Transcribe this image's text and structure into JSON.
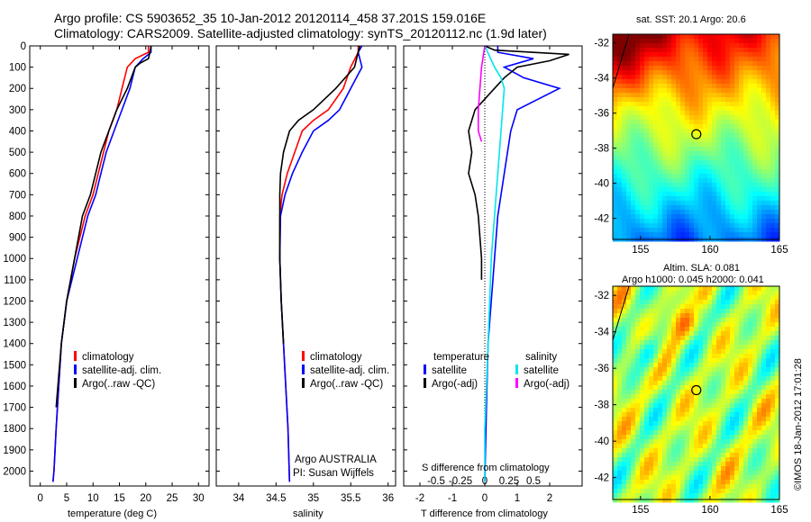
{
  "header": {
    "line1": "Argo profile: CS 5903652_35 10-Jan-2012 20120114_458 37.201S 159.016E",
    "line2": "Climatology: CARS2009. Satellite-adjusted climatology: synTS_20120112.nc (1.9d later)"
  },
  "colors": {
    "climatology": "#ff0000",
    "satellite": "#0000ff",
    "argo": "#000000",
    "sat_salinity": "#00e5ee",
    "argo_adj_salinity": "#ff00ff"
  },
  "chart_data": [
    {
      "type": "line",
      "xlabel": "temperature (deg C)",
      "ylabel": "",
      "xlim": [
        -2,
        32
      ],
      "ylim": [
        2070,
        0
      ],
      "xticks": [
        "0",
        "5",
        "10",
        "15",
        "20",
        "25",
        "30"
      ],
      "yticks": [
        "0",
        "100",
        "200",
        "300",
        "400",
        "500",
        "600",
        "700",
        "800",
        "900",
        "1000",
        "1100",
        "1200",
        "1300",
        "1400",
        "1500",
        "1600",
        "1700",
        "1800",
        "1900",
        "2000"
      ],
      "legend": [
        "climatology",
        "satellite-adj. clim.",
        "Argo(..raw -QC)"
      ],
      "series": [
        {
          "name": "climatology",
          "color": "#ff0000",
          "x": [
            20.5,
            20.5,
            18.0,
            16.5,
            15.5,
            14.5,
            13.0,
            12.0,
            11.0,
            10.0,
            8.5,
            6.5,
            5.0,
            4.0,
            3.5,
            3.0,
            2.6,
            2.4
          ],
          "y": [
            0,
            30,
            60,
            100,
            200,
            300,
            400,
            500,
            600,
            700,
            800,
            1000,
            1200,
            1400,
            1600,
            1800,
            2000,
            2050
          ]
        },
        {
          "name": "satellite-adj. clim.",
          "color": "#0000ff",
          "x": [
            21.0,
            21.0,
            19.5,
            18.0,
            17.0,
            15.5,
            14.0,
            12.5,
            11.5,
            10.5,
            9.0,
            7.0,
            5.0,
            4.0,
            3.5,
            3.0,
            2.6,
            2.4
          ],
          "y": [
            0,
            30,
            60,
            100,
            200,
            300,
            400,
            500,
            600,
            700,
            800,
            1000,
            1200,
            1400,
            1600,
            1800,
            2000,
            2050
          ]
        },
        {
          "name": "Argo(..raw -QC)",
          "color": "#000000",
          "x": [
            21.0,
            20.8,
            20.5,
            19.0,
            18.0,
            16.5,
            14.5,
            13.0,
            11.5,
            10.5,
            9.5,
            8.0,
            6.5,
            5.0,
            4.0,
            3.0
          ],
          "y": [
            0,
            30,
            60,
            80,
            100,
            200,
            300,
            400,
            500,
            600,
            700,
            800,
            1000,
            1200,
            1400,
            1700
          ]
        }
      ]
    },
    {
      "type": "line",
      "xlabel": "salinity",
      "ylabel": "",
      "xlim": [
        33.7,
        36.1
      ],
      "ylim": [
        2070,
        0
      ],
      "xticks": [
        "34",
        "34.5",
        "35",
        "35.5",
        "36"
      ],
      "legend": [
        "climatology",
        "satellite-adj. clim.",
        "Argo(..raw -QC)"
      ],
      "annotation": [
        "Argo AUSTRALIA",
        "PI: Susan Wijffels"
      ],
      "series": [
        {
          "name": "climatology",
          "color": "#ff0000",
          "x": [
            35.6,
            35.6,
            35.5,
            35.4,
            35.2,
            35.0,
            34.85,
            34.75,
            34.65,
            34.58,
            34.55,
            34.55,
            34.57,
            34.6,
            34.63,
            34.66,
            34.68
          ],
          "y": [
            0,
            30,
            100,
            200,
            300,
            350,
            400,
            500,
            600,
            700,
            800,
            1000,
            1200,
            1400,
            1600,
            1800,
            2050
          ]
        },
        {
          "name": "satellite-adj. clim.",
          "color": "#0000ff",
          "x": [
            35.65,
            35.6,
            35.65,
            35.5,
            35.35,
            35.2,
            35.0,
            34.85,
            34.72,
            34.62,
            34.56,
            34.55,
            34.57,
            34.6,
            34.63,
            34.66,
            34.68
          ],
          "y": [
            0,
            30,
            100,
            200,
            300,
            350,
            400,
            500,
            600,
            700,
            800,
            1000,
            1200,
            1400,
            1600,
            1800,
            2050
          ]
        },
        {
          "name": "Argo(..raw -QC)",
          "color": "#000000",
          "x": [
            35.62,
            35.6,
            35.55,
            35.3,
            35.0,
            34.8,
            34.68,
            34.6,
            34.56,
            34.55,
            34.55,
            34.55,
            34.57,
            34.6
          ],
          "y": [
            0,
            30,
            100,
            200,
            300,
            350,
            400,
            500,
            600,
            700,
            800,
            1000,
            1200,
            1400
          ]
        }
      ]
    },
    {
      "type": "line",
      "xlabel": "T difference from climatology",
      "title": "S difference from climatology",
      "xlim": [
        -2.5,
        3.0
      ],
      "ylim": [
        2070,
        0
      ],
      "xticks": [
        "-2",
        "-1",
        "0",
        "1",
        "2"
      ],
      "top_ticks": [
        "-0.5",
        "-0.25",
        "0",
        "0.25",
        "0.5"
      ],
      "legend_titles": [
        "temperature",
        "salinity"
      ],
      "legend": [
        "satellite",
        "Argo(-adj)",
        "satellite",
        "Argo(-adj)"
      ],
      "series": [
        {
          "name": "temperature satellite",
          "color": "#0000ff",
          "x": [
            0.4,
            0.4,
            1.5,
            0.6,
            1.2,
            2.3,
            1.0,
            0.8,
            0.7,
            0.6,
            0.5,
            0.4,
            0.3,
            0.2,
            0.1,
            0.05,
            0.0
          ],
          "y": [
            0,
            30,
            60,
            100,
            150,
            200,
            300,
            400,
            500,
            600,
            700,
            800,
            1000,
            1200,
            1400,
            1700,
            2050
          ]
        },
        {
          "name": "temperature Argo(-adj)",
          "color": "#000000",
          "x": [
            0.0,
            0.3,
            2.6,
            2.0,
            1.0,
            0.6,
            0.3,
            -0.3,
            -0.5,
            -0.4,
            -0.5,
            -0.3,
            -0.2,
            -0.1,
            -0.1
          ],
          "y": [
            0,
            20,
            40,
            70,
            100,
            150,
            200,
            300,
            400,
            500,
            600,
            700,
            800,
            1000,
            1100
          ]
        },
        {
          "name": "salinity satellite",
          "color": "#00e5ee",
          "x": [
            0.0,
            0.3,
            0.5,
            0.6,
            0.5,
            0.4,
            0.3,
            0.2,
            0.15,
            0.1,
            0.05,
            0.0,
            0.0
          ],
          "y": [
            0,
            100,
            150,
            200,
            400,
            600,
            800,
            1000,
            1200,
            1400,
            1600,
            1800,
            2050
          ]
        },
        {
          "name": "salinity Argo(-adj)",
          "color": "#ff00ff",
          "x": [
            0.0,
            -0.1,
            -0.15,
            -0.2,
            -0.2,
            -0.1
          ],
          "y": [
            0,
            100,
            200,
            300,
            400,
            450
          ]
        }
      ]
    },
    {
      "type": "heatmap",
      "title": "sat. SST: 20.1 Argo: 20.6",
      "xlim": [
        153,
        165
      ],
      "ylim": [
        -43.2,
        -31.5
      ],
      "xticks": [
        "155",
        "160",
        "165"
      ],
      "yticks": [
        "-32",
        "-34",
        "-36",
        "-38",
        "-40",
        "-42"
      ],
      "marker": {
        "lon": 159.016,
        "lat": -37.201
      }
    },
    {
      "type": "heatmap",
      "title": [
        "Altim. SLA: 0.081",
        "Argo h1000: 0.045 h2000: 0.041"
      ],
      "xlim": [
        153,
        165
      ],
      "ylim": [
        -43.2,
        -31.5
      ],
      "xticks": [
        "155",
        "160",
        "165"
      ],
      "yticks": [
        "-32",
        "-34",
        "-36",
        "-38",
        "-40",
        "-42"
      ],
      "marker": {
        "lon": 159.016,
        "lat": -37.201
      }
    }
  ],
  "credit": "©IMOS 18-Jan-2012 17:01:28"
}
